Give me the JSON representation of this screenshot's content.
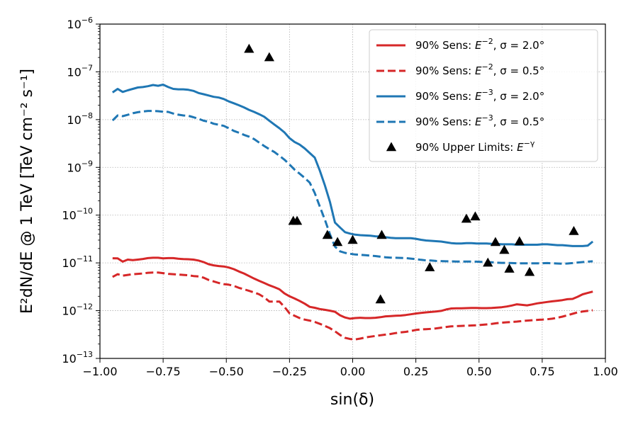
{
  "chart_data": {
    "type": "line",
    "title": "",
    "xlabel": "sin(δ)",
    "ylabel": "E²dN/dE @ 1 TeV [TeV cm⁻² s⁻¹]",
    "xlim": [
      -1.0,
      1.0
    ],
    "ylim": [
      1e-13,
      1e-06
    ],
    "yscale": "log",
    "grid": true,
    "legend_position": "top-right",
    "x_ticks": [
      {
        "value": -1.0,
        "label": "−1.00"
      },
      {
        "value": -0.75,
        "label": "−0.75"
      },
      {
        "value": -0.5,
        "label": "−0.50"
      },
      {
        "value": -0.25,
        "label": "−0.25"
      },
      {
        "value": 0.0,
        "label": "0.00"
      },
      {
        "value": 0.25,
        "label": "0.25"
      },
      {
        "value": 0.5,
        "label": "0.50"
      },
      {
        "value": 0.75,
        "label": "0.75"
      },
      {
        "value": 1.0,
        "label": "1.00"
      }
    ],
    "y_ticks": [
      {
        "value": 1e-13,
        "base": "10",
        "exp": "−13"
      },
      {
        "value": 1e-12,
        "base": "10",
        "exp": "−12"
      },
      {
        "value": 1e-11,
        "base": "10",
        "exp": "−11"
      },
      {
        "value": 1e-10,
        "base": "10",
        "exp": "−10"
      },
      {
        "value": 1e-09,
        "base": "10",
        "exp": "−9"
      },
      {
        "value": 1e-08,
        "base": "10",
        "exp": "−8"
      },
      {
        "value": 1e-07,
        "base": "10",
        "exp": "−7"
      },
      {
        "value": 1e-06,
        "base": "10",
        "exp": "−6"
      }
    ],
    "series": [
      {
        "name": "90% Sens: E⁻², σ = 2.0°",
        "legend_prefix": "90% Sens: ",
        "legend_exp": "−2",
        "legend_suffix": ", σ = 2.0°",
        "color": "#d62728",
        "style": "solid",
        "x": [
          -0.95,
          -0.93,
          -0.91,
          -0.89,
          -0.87,
          -0.85,
          -0.83,
          -0.81,
          -0.79,
          -0.77,
          -0.75,
          -0.73,
          -0.71,
          -0.69,
          -0.67,
          -0.65,
          -0.63,
          -0.61,
          -0.59,
          -0.57,
          -0.55,
          -0.53,
          -0.51,
          -0.49,
          -0.47,
          -0.45,
          -0.43,
          -0.41,
          -0.39,
          -0.37,
          -0.35,
          -0.33,
          -0.31,
          -0.29,
          -0.27,
          -0.25,
          -0.23,
          -0.21,
          -0.19,
          -0.17,
          -0.15,
          -0.13,
          -0.11,
          -0.09,
          -0.07,
          -0.05,
          -0.03,
          -0.01,
          0.01,
          0.03,
          0.05,
          0.07,
          0.09,
          0.11,
          0.13,
          0.15,
          0.17,
          0.19,
          0.21,
          0.23,
          0.25,
          0.27,
          0.29,
          0.31,
          0.33,
          0.35,
          0.37,
          0.39,
          0.41,
          0.43,
          0.45,
          0.47,
          0.49,
          0.51,
          0.53,
          0.55,
          0.57,
          0.59,
          0.61,
          0.63,
          0.65,
          0.67,
          0.69,
          0.71,
          0.73,
          0.75,
          0.77,
          0.79,
          0.81,
          0.83,
          0.85,
          0.87,
          0.89,
          0.91,
          0.93,
          0.95
        ],
        "y": [
          1.25e-11,
          1.24e-11,
          1.06e-11,
          1.17e-11,
          1.14e-11,
          1.17e-11,
          1.21e-11,
          1.26e-11,
          1.28e-11,
          1.28e-11,
          1.24e-11,
          1.26e-11,
          1.26e-11,
          1.22e-11,
          1.2e-11,
          1.19e-11,
          1.17e-11,
          1.12e-11,
          1.04e-11,
          9.4e-12,
          8.9e-12,
          8.6e-12,
          8.4e-12,
          8e-12,
          7.4e-12,
          6.6e-12,
          6e-12,
          5.3e-12,
          4.7e-12,
          4.2e-12,
          3.8e-12,
          3.4e-12,
          3.1e-12,
          2.8e-12,
          2.3e-12,
          2e-12,
          1.8e-12,
          1.6e-12,
          1.4e-12,
          1.2e-12,
          1.15e-12,
          1.08e-12,
          1.04e-12,
          1e-12,
          9.5e-13,
          8e-13,
          7.2e-13,
          6.8e-13,
          7e-13,
          7.1e-13,
          7e-13,
          7e-13,
          7.1e-13,
          7.3e-13,
          7.6e-13,
          7.7e-13,
          7.8e-13,
          7.9e-13,
          8.1e-13,
          8.4e-13,
          8.7e-13,
          9e-13,
          9.2e-13,
          9.4e-13,
          9.6e-13,
          9.9e-13,
          1.06e-12,
          1.11e-12,
          1.12e-12,
          1.12e-12,
          1.13e-12,
          1.14e-12,
          1.14e-12,
          1.13e-12,
          1.13e-12,
          1.14e-12,
          1.16e-12,
          1.18e-12,
          1.22e-12,
          1.28e-12,
          1.36e-12,
          1.32e-12,
          1.29e-12,
          1.35e-12,
          1.42e-12,
          1.47e-12,
          1.52e-12,
          1.57e-12,
          1.61e-12,
          1.66e-12,
          1.74e-12,
          1.76e-12,
          1.95e-12,
          2.2e-12,
          2.35e-12,
          2.5e-12
        ]
      },
      {
        "name": "90% Sens: E⁻², σ = 0.5°",
        "legend_prefix": "90% Sens: ",
        "legend_exp": "−2",
        "legend_suffix": ", σ = 0.5°",
        "color": "#d62728",
        "style": "dashed",
        "x": [
          -0.95,
          -0.93,
          -0.91,
          -0.89,
          -0.87,
          -0.85,
          -0.83,
          -0.81,
          -0.79,
          -0.77,
          -0.75,
          -0.73,
          -0.71,
          -0.69,
          -0.67,
          -0.65,
          -0.63,
          -0.61,
          -0.59,
          -0.57,
          -0.55,
          -0.53,
          -0.51,
          -0.49,
          -0.47,
          -0.45,
          -0.43,
          -0.41,
          -0.39,
          -0.37,
          -0.35,
          -0.33,
          -0.31,
          -0.29,
          -0.27,
          -0.25,
          -0.23,
          -0.21,
          -0.19,
          -0.17,
          -0.15,
          -0.13,
          -0.11,
          -0.09,
          -0.07,
          -0.05,
          -0.03,
          -0.01,
          0.01,
          0.03,
          0.05,
          0.07,
          0.09,
          0.11,
          0.13,
          0.15,
          0.17,
          0.19,
          0.21,
          0.23,
          0.25,
          0.27,
          0.29,
          0.31,
          0.33,
          0.35,
          0.37,
          0.39,
          0.41,
          0.43,
          0.45,
          0.47,
          0.49,
          0.51,
          0.53,
          0.55,
          0.57,
          0.59,
          0.61,
          0.63,
          0.65,
          0.67,
          0.69,
          0.71,
          0.73,
          0.75,
          0.77,
          0.79,
          0.81,
          0.83,
          0.85,
          0.87,
          0.89,
          0.91,
          0.93,
          0.95
        ],
        "y": [
          5.1e-12,
          5.8e-12,
          5.4e-12,
          5.6e-12,
          5.8e-12,
          5.9e-12,
          6e-12,
          6.2e-12,
          6.3e-12,
          6.3e-12,
          6.1e-12,
          5.9e-12,
          5.8e-12,
          5.7e-12,
          5.6e-12,
          5.5e-12,
          5.3e-12,
          5.2e-12,
          4.9e-12,
          4.4e-12,
          4.1e-12,
          3.8e-12,
          3.6e-12,
          3.5e-12,
          3.3e-12,
          3e-12,
          2.8e-12,
          2.6e-12,
          2.4e-12,
          2.2e-12,
          1.9e-12,
          1.55e-12,
          1.55e-12,
          1.55e-12,
          1.2e-12,
          8.8e-13,
          7.8e-13,
          7e-13,
          6.5e-13,
          6.2e-13,
          5.8e-13,
          5.3e-13,
          4.8e-13,
          4.3e-13,
          3.7e-13,
          3.1e-13,
          2.7e-13,
          2.55e-13,
          2.5e-13,
          2.6e-13,
          2.75e-13,
          2.85e-13,
          2.95e-13,
          3.05e-13,
          3.15e-13,
          3.25e-13,
          3.4e-13,
          3.5e-13,
          3.6e-13,
          3.75e-13,
          3.95e-13,
          4.05e-13,
          4.1e-13,
          4.15e-13,
          4.25e-13,
          4.4e-13,
          4.55e-13,
          4.7e-13,
          4.75e-13,
          4.8e-13,
          4.85e-13,
          4.9e-13,
          4.95e-13,
          5.05e-13,
          5.15e-13,
          5.3e-13,
          5.45e-13,
          5.6e-13,
          5.7e-13,
          5.8e-13,
          5.9e-13,
          6.05e-13,
          6.2e-13,
          6.3e-13,
          6.4e-13,
          6.5e-13,
          6.6e-13,
          6.8e-13,
          7.1e-13,
          7.5e-13,
          8e-13,
          8.6e-13,
          9.2e-13,
          9.6e-13,
          9.9e-13,
          1.02e-12
        ]
      },
      {
        "name": "90% Sens: E⁻³, σ = 2.0°",
        "legend_prefix": "90% Sens: ",
        "legend_exp": "−3",
        "legend_suffix": ", σ = 2.0°",
        "color": "#1f77b4",
        "style": "solid",
        "x": [
          -0.95,
          -0.93,
          -0.91,
          -0.89,
          -0.87,
          -0.85,
          -0.83,
          -0.81,
          -0.79,
          -0.77,
          -0.75,
          -0.73,
          -0.71,
          -0.69,
          -0.67,
          -0.65,
          -0.63,
          -0.61,
          -0.59,
          -0.57,
          -0.55,
          -0.53,
          -0.51,
          -0.49,
          -0.47,
          -0.45,
          -0.43,
          -0.41,
          -0.39,
          -0.37,
          -0.35,
          -0.33,
          -0.31,
          -0.29,
          -0.27,
          -0.25,
          -0.23,
          -0.21,
          -0.19,
          -0.17,
          -0.15,
          -0.13,
          -0.11,
          -0.09,
          -0.07,
          -0.05,
          -0.03,
          -0.01,
          0.01,
          0.03,
          0.05,
          0.07,
          0.09,
          0.11,
          0.13,
          0.15,
          0.17,
          0.19,
          0.21,
          0.23,
          0.25,
          0.27,
          0.29,
          0.31,
          0.33,
          0.35,
          0.37,
          0.39,
          0.41,
          0.43,
          0.45,
          0.47,
          0.49,
          0.51,
          0.53,
          0.55,
          0.57,
          0.59,
          0.61,
          0.63,
          0.65,
          0.67,
          0.69,
          0.71,
          0.73,
          0.75,
          0.77,
          0.79,
          0.81,
          0.83,
          0.85,
          0.87,
          0.89,
          0.91,
          0.93,
          0.95
        ],
        "y": [
          3.7e-08,
          4.4e-08,
          3.8e-08,
          4.1e-08,
          4.4e-08,
          4.7e-08,
          4.8e-08,
          5e-08,
          5.3e-08,
          5.1e-08,
          5.4e-08,
          4.8e-08,
          4.4e-08,
          4.3e-08,
          4.3e-08,
          4.2e-08,
          4e-08,
          3.6e-08,
          3.4e-08,
          3.2e-08,
          3e-08,
          2.9e-08,
          2.7e-08,
          2.4e-08,
          2.2e-08,
          2e-08,
          1.8e-08,
          1.6e-08,
          1.45e-08,
          1.3e-08,
          1.15e-08,
          9.5e-09,
          7.9e-09,
          6.6e-09,
          5.4e-09,
          4.1e-09,
          3.4e-09,
          3e-09,
          2.5e-09,
          2e-09,
          1.6e-09,
          8.5e-10,
          4.2e-10,
          1.9e-10,
          7e-11,
          5.5e-11,
          4.4e-11,
          4.1e-11,
          3.9e-11,
          3.8e-11,
          3.75e-11,
          3.7e-11,
          3.6e-11,
          3.55e-11,
          3.45e-11,
          3.35e-11,
          3.3e-11,
          3.3e-11,
          3.3e-11,
          3.3e-11,
          3.2e-11,
          3.05e-11,
          2.95e-11,
          2.9e-11,
          2.85e-11,
          2.8e-11,
          2.7e-11,
          2.6e-11,
          2.55e-11,
          2.55e-11,
          2.6e-11,
          2.6e-11,
          2.55e-11,
          2.55e-11,
          2.55e-11,
          2.5e-11,
          2.5e-11,
          2.45e-11,
          2.45e-11,
          2.45e-11,
          2.4e-11,
          2.4e-11,
          2.4e-11,
          2.4e-11,
          2.4e-11,
          2.45e-11,
          2.45e-11,
          2.4e-11,
          2.35e-11,
          2.35e-11,
          2.3e-11,
          2.25e-11,
          2.25e-11,
          2.25e-11,
          2.3e-11,
          2.8e-11
        ]
      },
      {
        "name": "90% Sens: E⁻³, σ = 0.5°",
        "legend_prefix": "90% Sens: ",
        "legend_exp": "−3",
        "legend_suffix": ", σ = 0.5°",
        "color": "#1f77b4",
        "style": "dashed",
        "x": [
          -0.95,
          -0.93,
          -0.91,
          -0.89,
          -0.87,
          -0.85,
          -0.83,
          -0.81,
          -0.79,
          -0.77,
          -0.75,
          -0.73,
          -0.71,
          -0.69,
          -0.67,
          -0.65,
          -0.63,
          -0.61,
          -0.59,
          -0.57,
          -0.55,
          -0.53,
          -0.51,
          -0.49,
          -0.47,
          -0.45,
          -0.43,
          -0.41,
          -0.39,
          -0.37,
          -0.35,
          -0.33,
          -0.31,
          -0.29,
          -0.27,
          -0.25,
          -0.23,
          -0.21,
          -0.19,
          -0.17,
          -0.15,
          -0.13,
          -0.11,
          -0.09,
          -0.07,
          -0.05,
          -0.03,
          -0.01,
          0.01,
          0.03,
          0.05,
          0.07,
          0.09,
          0.11,
          0.13,
          0.15,
          0.17,
          0.19,
          0.21,
          0.23,
          0.25,
          0.27,
          0.29,
          0.31,
          0.33,
          0.35,
          0.37,
          0.39,
          0.41,
          0.43,
          0.45,
          0.47,
          0.49,
          0.51,
          0.53,
          0.55,
          0.57,
          0.59,
          0.61,
          0.63,
          0.65,
          0.67,
          0.69,
          0.71,
          0.73,
          0.75,
          0.77,
          0.79,
          0.81,
          0.83,
          0.85,
          0.87,
          0.89,
          0.91,
          0.93,
          0.95
        ],
        "y": [
          9.6e-09,
          1.22e-08,
          1.18e-08,
          1.26e-08,
          1.36e-08,
          1.43e-08,
          1.48e-08,
          1.52e-08,
          1.52e-08,
          1.5e-08,
          1.46e-08,
          1.45e-08,
          1.34e-08,
          1.27e-08,
          1.22e-08,
          1.2e-08,
          1.12e-08,
          1.04e-08,
          9.5e-09,
          9e-09,
          8.2e-09,
          7.8e-09,
          7.4e-09,
          6.6e-09,
          5.8e-09,
          5.3e-09,
          4.8e-09,
          4.4e-09,
          3.9e-09,
          3.3e-09,
          2.8e-09,
          2.4e-09,
          2.1e-09,
          1.75e-09,
          1.45e-09,
          1.15e-09,
          9e-10,
          7.4e-10,
          6e-10,
          4.8e-10,
          2.9e-10,
          1.5e-10,
          8e-11,
          4e-11,
          2.2e-11,
          1.75e-11,
          1.62e-11,
          1.55e-11,
          1.5e-11,
          1.48e-11,
          1.45e-11,
          1.42e-11,
          1.39e-11,
          1.35e-11,
          1.31e-11,
          1.29e-11,
          1.28e-11,
          1.27e-11,
          1.26e-11,
          1.23e-11,
          1.2e-11,
          1.16e-11,
          1.13e-11,
          1.12e-11,
          1.1e-11,
          1.09e-11,
          1.08e-11,
          1.08e-11,
          1.07e-11,
          1.07e-11,
          1.07e-11,
          1.07e-11,
          1.06e-11,
          1.05e-11,
          1.04e-11,
          1.03e-11,
          1.01e-11,
          1e-11,
          1e-11,
          9.9e-12,
          9.8e-12,
          9.8e-12,
          9.8e-12,
          9.8e-12,
          9.8e-12,
          9.8e-12,
          9.9e-12,
          9.8e-12,
          9.7e-12,
          9.6e-12,
          9.7e-12,
          9.9e-12,
          1.02e-11,
          1.04e-11,
          1.06e-11,
          1.08e-11
        ]
      }
    ],
    "upper_limits": {
      "name": "90% Upper Limits: E⁻ᵞ",
      "legend_prefix": "90% Upper Limits: ",
      "legend_exp": "−γ",
      "legend_suffix": "",
      "color": "#000000",
      "marker": "triangle",
      "points": [
        {
          "x": -0.41,
          "y": 3e-07
        },
        {
          "x": -0.33,
          "y": 2e-07
        },
        {
          "x": -0.235,
          "y": 7.5e-11
        },
        {
          "x": -0.22,
          "y": 7.5e-11
        },
        {
          "x": -0.1,
          "y": 3.8e-11
        },
        {
          "x": -0.06,
          "y": 2.7e-11
        },
        {
          "x": 0.0,
          "y": 3e-11
        },
        {
          "x": 0.11,
          "y": 1.7e-12
        },
        {
          "x": 0.115,
          "y": 3.8e-11
        },
        {
          "x": 0.305,
          "y": 8e-12
        },
        {
          "x": 0.45,
          "y": 8.3e-11
        },
        {
          "x": 0.485,
          "y": 9.3e-11
        },
        {
          "x": 0.565,
          "y": 2.7e-11
        },
        {
          "x": 0.535,
          "y": 1e-11
        },
        {
          "x": 0.6,
          "y": 1.85e-11
        },
        {
          "x": 0.62,
          "y": 7.5e-12
        },
        {
          "x": 0.66,
          "y": 2.8e-11
        },
        {
          "x": 0.7,
          "y": 6.4e-12
        },
        {
          "x": 0.875,
          "y": 4.6e-11
        }
      ]
    }
  }
}
